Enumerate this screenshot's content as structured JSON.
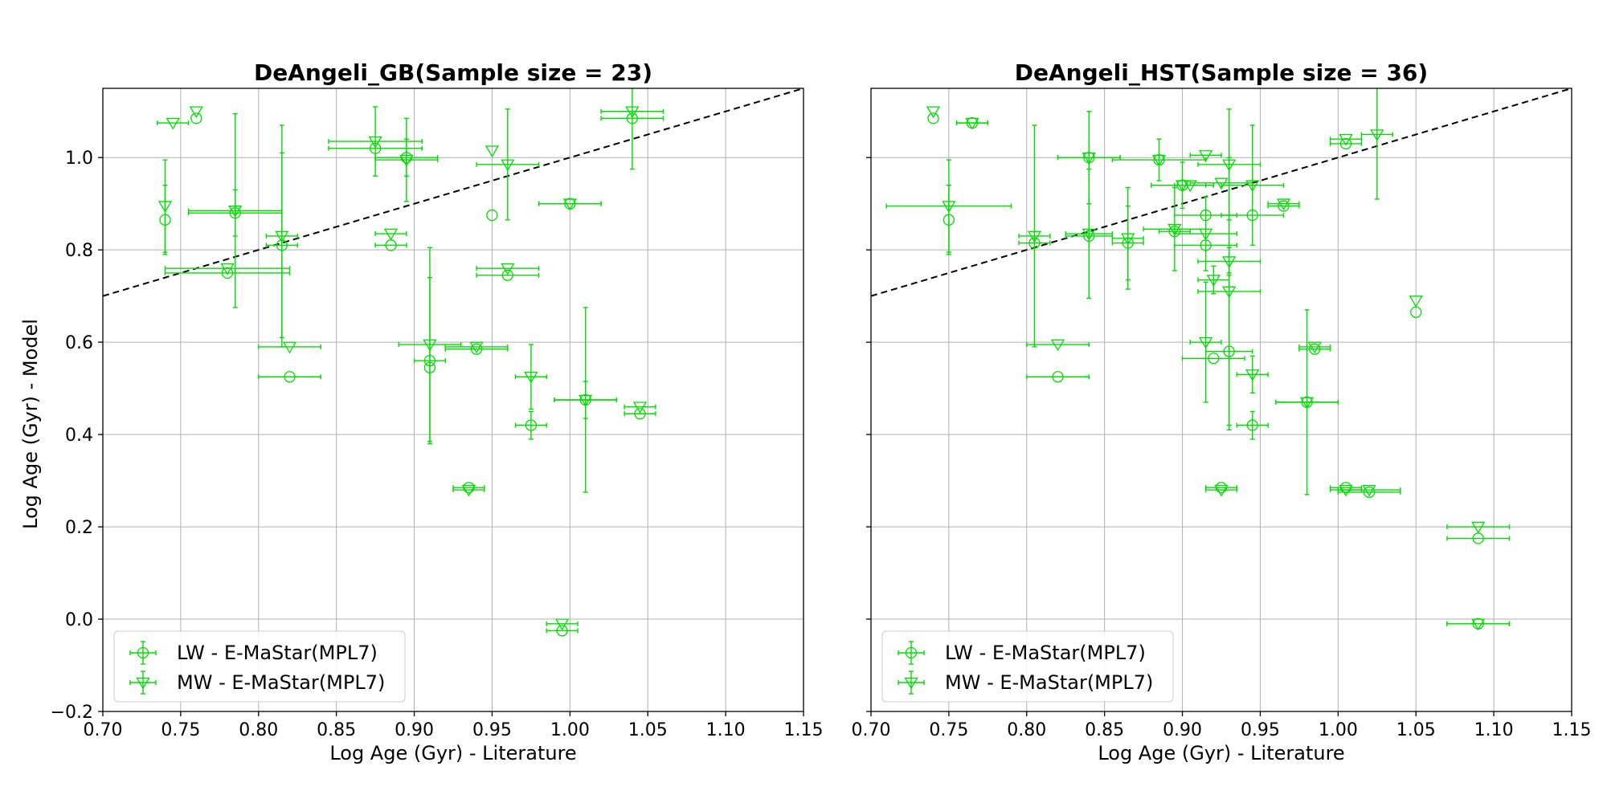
{
  "chart_data": [
    {
      "type": "scatter",
      "title": "DeAngeli_GB(Sample size = 23)",
      "xlabel": "Log Age (Gyr) - Literature",
      "ylabel": "Log Age (Gyr) - Model",
      "xlim": [
        0.7,
        1.15
      ],
      "ylim": [
        -0.2,
        1.15
      ],
      "xticks": [
        "0.70",
        "0.75",
        "0.80",
        "0.85",
        "0.90",
        "0.95",
        "1.00",
        "1.05",
        "1.10",
        "1.15"
      ],
      "yticks": [
        "−0.2",
        "0.0",
        "0.2",
        "0.4",
        "0.6",
        "0.8",
        "1.0"
      ],
      "grid": true,
      "legend_position": "lower-left",
      "reference_line": "y = x",
      "series": [
        {
          "name": "LW - E-MaStar(MPL7)",
          "marker": "circle",
          "color": "#00dd00",
          "points": [
            {
              "x": 0.74,
              "y": 0.865,
              "xerr": 0,
              "yerr": 0.075
            },
            {
              "x": 0.76,
              "y": 1.085,
              "xerr": 0,
              "yerr": 0
            },
            {
              "x": 0.78,
              "y": 0.75,
              "xerr": 0.04,
              "yerr": 0
            },
            {
              "x": 0.785,
              "y": 0.88,
              "xerr": 0.03,
              "yerr": 0.05
            },
            {
              "x": 0.815,
              "y": 0.81,
              "xerr": 0.01,
              "yerr": 0.2
            },
            {
              "x": 0.82,
              "y": 0.525,
              "xerr": 0.02,
              "yerr": 0
            },
            {
              "x": 0.875,
              "y": 1.02,
              "xerr": 0.03,
              "yerr": 0
            },
            {
              "x": 0.885,
              "y": 0.81,
              "xerr": 0.01,
              "yerr": 0
            },
            {
              "x": 0.895,
              "y": 1.0,
              "xerr": 0.02,
              "yerr": 0.04
            },
            {
              "x": 0.91,
              "y": 0.56,
              "xerr": 0.01,
              "yerr": 0.18
            },
            {
              "x": 0.91,
              "y": 0.545,
              "xerr": 0,
              "yerr": 0
            },
            {
              "x": 0.935,
              "y": 0.285,
              "xerr": 0.01,
              "yerr": 0
            },
            {
              "x": 0.94,
              "y": 0.585,
              "xerr": 0.02,
              "yerr": 0
            },
            {
              "x": 0.95,
              "y": 0.875,
              "xerr": 0,
              "yerr": 0
            },
            {
              "x": 0.96,
              "y": 0.745,
              "xerr": 0.02,
              "yerr": 0
            },
            {
              "x": 0.975,
              "y": 0.42,
              "xerr": 0.01,
              "yerr": 0.03
            },
            {
              "x": 0.995,
              "y": -0.025,
              "xerr": 0.01,
              "yerr": 0
            },
            {
              "x": 1.0,
              "y": 0.9,
              "xerr": 0.02,
              "yerr": 0
            },
            {
              "x": 1.01,
              "y": 0.475,
              "xerr": 0.02,
              "yerr": 0.04
            },
            {
              "x": 1.04,
              "y": 1.085,
              "xerr": 0.02,
              "yerr": 0.11
            },
            {
              "x": 1.045,
              "y": 0.445,
              "xerr": 0.01,
              "yerr": 0
            }
          ]
        },
        {
          "name": "MW - E-MaStar(MPL7)",
          "marker": "triangle-down",
          "color": "#00dd00",
          "points": [
            {
              "x": 0.74,
              "y": 0.895,
              "xerr": 0,
              "yerr": 0.1
            },
            {
              "x": 0.745,
              "y": 1.075,
              "xerr": 0.01,
              "yerr": 0
            },
            {
              "x": 0.76,
              "y": 1.1,
              "xerr": 0,
              "yerr": 0
            },
            {
              "x": 0.78,
              "y": 0.76,
              "xerr": 0.04,
              "yerr": 0
            },
            {
              "x": 0.785,
              "y": 0.885,
              "xerr": 0.03,
              "yerr": 0.21
            },
            {
              "x": 0.815,
              "y": 0.83,
              "xerr": 0.01,
              "yerr": 0.24
            },
            {
              "x": 0.82,
              "y": 0.59,
              "xerr": 0.02,
              "yerr": 0
            },
            {
              "x": 0.875,
              "y": 1.035,
              "xerr": 0.03,
              "yerr": 0.075
            },
            {
              "x": 0.885,
              "y": 0.835,
              "xerr": 0.01,
              "yerr": 0
            },
            {
              "x": 0.895,
              "y": 0.995,
              "xerr": 0.02,
              "yerr": 0.09
            },
            {
              "x": 0.91,
              "y": 0.595,
              "xerr": 0.02,
              "yerr": 0.21
            },
            {
              "x": 0.935,
              "y": 0.28,
              "xerr": 0.01,
              "yerr": 0
            },
            {
              "x": 0.94,
              "y": 0.59,
              "xerr": 0.02,
              "yerr": 0
            },
            {
              "x": 0.95,
              "y": 1.015,
              "xerr": 0,
              "yerr": 0
            },
            {
              "x": 0.96,
              "y": 0.985,
              "xerr": 0.02,
              "yerr": 0.12
            },
            {
              "x": 0.96,
              "y": 0.76,
              "xerr": 0.02,
              "yerr": 0
            },
            {
              "x": 0.975,
              "y": 0.525,
              "xerr": 0.01,
              "yerr": 0.07
            },
            {
              "x": 0.995,
              "y": -0.01,
              "xerr": 0.01,
              "yerr": 0
            },
            {
              "x": 1.0,
              "y": 0.9,
              "xerr": 0.02,
              "yerr": 0
            },
            {
              "x": 1.01,
              "y": 0.475,
              "xerr": 0.02,
              "yerr": 0.2
            },
            {
              "x": 1.04,
              "y": 1.1,
              "xerr": 0.02,
              "yerr": 0
            },
            {
              "x": 1.045,
              "y": 0.46,
              "xerr": 0.01,
              "yerr": 0
            }
          ]
        }
      ]
    },
    {
      "type": "scatter",
      "title": "DeAngeli_HST(Sample size = 36)",
      "xlabel": "Log Age (Gyr) - Literature",
      "ylabel": "",
      "xlim": [
        0.7,
        1.15
      ],
      "ylim": [
        -0.2,
        1.15
      ],
      "xticks": [
        "0.70",
        "0.75",
        "0.80",
        "0.85",
        "0.90",
        "0.95",
        "1.00",
        "1.05",
        "1.10",
        "1.15"
      ],
      "yticks": [],
      "grid": true,
      "legend_position": "lower-left",
      "reference_line": "y = x",
      "series": [
        {
          "name": "LW - E-MaStar(MPL7)",
          "marker": "circle",
          "color": "#00dd00",
          "points": [
            {
              "x": 0.74,
              "y": 1.085,
              "xerr": 0,
              "yerr": 0
            },
            {
              "x": 0.75,
              "y": 0.865,
              "xerr": 0,
              "yerr": 0.075
            },
            {
              "x": 0.765,
              "y": 1.075,
              "xerr": 0.01,
              "yerr": 0
            },
            {
              "x": 0.805,
              "y": 0.815,
              "xerr": 0.01,
              "yerr": 0
            },
            {
              "x": 0.82,
              "y": 0.525,
              "xerr": 0.02,
              "yerr": 0
            },
            {
              "x": 0.84,
              "y": 1.0,
              "xerr": 0.02,
              "yerr": 0
            },
            {
              "x": 0.84,
              "y": 0.83,
              "xerr": 0.015,
              "yerr": 0
            },
            {
              "x": 0.865,
              "y": 0.815,
              "xerr": 0.01,
              "yerr": 0.08
            },
            {
              "x": 0.885,
              "y": 0.995,
              "xerr": 0,
              "yerr": 0
            },
            {
              "x": 0.895,
              "y": 0.84,
              "xerr": 0.01,
              "yerr": 0
            },
            {
              "x": 0.9,
              "y": 0.94,
              "xerr": 0.02,
              "yerr": 0
            },
            {
              "x": 0.915,
              "y": 0.875,
              "xerr": 0.02,
              "yerr": 0
            },
            {
              "x": 0.915,
              "y": 0.81,
              "xerr": 0.02,
              "yerr": 0
            },
            {
              "x": 0.92,
              "y": 0.565,
              "xerr": 0.02,
              "yerr": 0
            },
            {
              "x": 0.925,
              "y": 0.285,
              "xerr": 0.01,
              "yerr": 0
            },
            {
              "x": 0.93,
              "y": 0.58,
              "xerr": 0.015,
              "yerr": 0.17
            },
            {
              "x": 0.945,
              "y": 0.875,
              "xerr": 0.02,
              "yerr": 0
            },
            {
              "x": 0.945,
              "y": 0.42,
              "xerr": 0.01,
              "yerr": 0.03
            },
            {
              "x": 0.965,
              "y": 0.895,
              "xerr": 0.01,
              "yerr": 0
            },
            {
              "x": 0.98,
              "y": 0.47,
              "xerr": 0.02,
              "yerr": 0
            },
            {
              "x": 0.985,
              "y": 0.585,
              "xerr": 0.01,
              "yerr": 0
            },
            {
              "x": 1.005,
              "y": 0.285,
              "xerr": 0.01,
              "yerr": 0
            },
            {
              "x": 1.005,
              "y": 1.03,
              "xerr": 0.01,
              "yerr": 0
            },
            {
              "x": 1.02,
              "y": 0.275,
              "xerr": 0.02,
              "yerr": 0
            },
            {
              "x": 1.05,
              "y": 0.665,
              "xerr": 0,
              "yerr": 0
            },
            {
              "x": 1.09,
              "y": 0.175,
              "xerr": 0.02,
              "yerr": 0
            },
            {
              "x": 1.09,
              "y": -0.01,
              "xerr": 0.02,
              "yerr": 0
            }
          ]
        },
        {
          "name": "MW - E-MaStar(MPL7)",
          "marker": "triangle-down",
          "color": "#00dd00",
          "points": [
            {
              "x": 0.74,
              "y": 1.1,
              "xerr": 0,
              "yerr": 0
            },
            {
              "x": 0.75,
              "y": 0.895,
              "xerr": 0.04,
              "yerr": 0.1
            },
            {
              "x": 0.765,
              "y": 1.075,
              "xerr": 0.01,
              "yerr": 0
            },
            {
              "x": 0.805,
              "y": 0.83,
              "xerr": 0.01,
              "yerr": 0.24
            },
            {
              "x": 0.82,
              "y": 0.595,
              "xerr": 0.02,
              "yerr": 0
            },
            {
              "x": 0.84,
              "y": 1.0,
              "xerr": 0.02,
              "yerr": 0.1
            },
            {
              "x": 0.84,
              "y": 0.835,
              "xerr": 0.015,
              "yerr": 0.14
            },
            {
              "x": 0.865,
              "y": 0.825,
              "xerr": 0.01,
              "yerr": 0.11
            },
            {
              "x": 0.885,
              "y": 0.995,
              "xerr": 0.03,
              "yerr": 0.045
            },
            {
              "x": 0.895,
              "y": 0.845,
              "xerr": 0.02,
              "yerr": 0.09
            },
            {
              "x": 0.9,
              "y": 0.94,
              "xerr": 0.02,
              "yerr": 0.05
            },
            {
              "x": 0.905,
              "y": 0.94,
              "xerr": 0.01,
              "yerr": 0
            },
            {
              "x": 0.915,
              "y": 1.005,
              "xerr": 0.01,
              "yerr": 0
            },
            {
              "x": 0.915,
              "y": 0.835,
              "xerr": 0.02,
              "yerr": 0.08
            },
            {
              "x": 0.915,
              "y": 0.6,
              "xerr": 0.01,
              "yerr": 0.13
            },
            {
              "x": 0.92,
              "y": 0.735,
              "xerr": 0.01,
              "yerr": 0.03
            },
            {
              "x": 0.925,
              "y": 0.945,
              "xerr": 0.02,
              "yerr": 0
            },
            {
              "x": 0.925,
              "y": 0.28,
              "xerr": 0.01,
              "yerr": 0
            },
            {
              "x": 0.93,
              "y": 0.985,
              "xerr": 0.02,
              "yerr": 0.12
            },
            {
              "x": 0.93,
              "y": 0.775,
              "xerr": 0.02,
              "yerr": 0.03
            },
            {
              "x": 0.93,
              "y": 0.71,
              "xerr": 0.02,
              "yerr": 0.29
            },
            {
              "x": 0.945,
              "y": 0.94,
              "xerr": 0.02,
              "yerr": 0.13
            },
            {
              "x": 0.945,
              "y": 0.53,
              "xerr": 0.01,
              "yerr": 0.04
            },
            {
              "x": 0.965,
              "y": 0.9,
              "xerr": 0.01,
              "yerr": 0
            },
            {
              "x": 0.98,
              "y": 0.47,
              "xerr": 0.02,
              "yerr": 0.2
            },
            {
              "x": 0.985,
              "y": 0.59,
              "xerr": 0.01,
              "yerr": 0
            },
            {
              "x": 1.005,
              "y": 1.04,
              "xerr": 0.01,
              "yerr": 0
            },
            {
              "x": 1.005,
              "y": 0.28,
              "xerr": 0.01,
              "yerr": 0
            },
            {
              "x": 1.02,
              "y": 0.28,
              "xerr": 0.02,
              "yerr": 0
            },
            {
              "x": 1.025,
              "y": 1.05,
              "xerr": 0.01,
              "yerr": 0.14
            },
            {
              "x": 1.05,
              "y": 0.69,
              "xerr": 0,
              "yerr": 0
            },
            {
              "x": 1.09,
              "y": 0.2,
              "xerr": 0.02,
              "yerr": 0
            },
            {
              "x": 1.09,
              "y": -0.01,
              "xerr": 0.02,
              "yerr": 0
            }
          ]
        }
      ]
    }
  ]
}
